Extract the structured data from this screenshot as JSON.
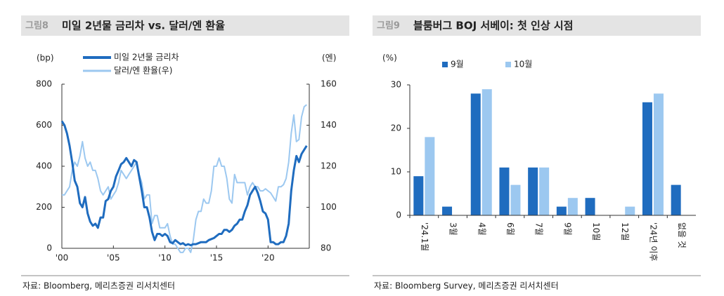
{
  "chart_data": [
    {
      "type": "line",
      "figure_label": "그림8",
      "title": "미일 2년물 금리차 vs. 달러/엔 환율",
      "source": "자료: Bloomberg, 메리츠증권 리서치센터",
      "y_label": "(bp)",
      "y2_label": "(엔)",
      "x": [
        2000,
        2000.25,
        2000.5,
        2000.75,
        2001,
        2001.25,
        2001.5,
        2001.75,
        2002,
        2002.25,
        2002.5,
        2002.75,
        2003,
        2003.25,
        2003.5,
        2003.75,
        2004,
        2004.25,
        2004.5,
        2004.75,
        2005,
        2005.25,
        2005.5,
        2005.75,
        2006,
        2006.25,
        2006.5,
        2006.75,
        2007,
        2007.25,
        2007.5,
        2007.75,
        2008,
        2008.25,
        2008.5,
        2008.75,
        2009,
        2009.25,
        2009.5,
        2009.75,
        2010,
        2010.25,
        2010.5,
        2010.75,
        2011,
        2011.25,
        2011.5,
        2011.75,
        2012,
        2012.25,
        2012.5,
        2012.75,
        2013,
        2013.25,
        2013.5,
        2013.75,
        2014,
        2014.25,
        2014.5,
        2014.75,
        2015,
        2015.25,
        2015.5,
        2015.75,
        2016,
        2016.25,
        2016.5,
        2016.75,
        2017,
        2017.25,
        2017.5,
        2017.75,
        2018,
        2018.25,
        2018.5,
        2018.75,
        2019,
        2019.25,
        2019.5,
        2019.75,
        2020,
        2020.25,
        2020.5,
        2020.75,
        2021,
        2021.25,
        2021.5,
        2021.75,
        2022,
        2022.25,
        2022.5,
        2022.75,
        2023,
        2023.25,
        2023.5,
        2023.75
      ],
      "series": [
        {
          "name": "미일 2년물 금리차",
          "color": "#1f6cbf",
          "width": 3,
          "values": [
            620,
            600,
            560,
            500,
            420,
            330,
            300,
            220,
            200,
            250,
            170,
            130,
            110,
            120,
            100,
            150,
            150,
            230,
            240,
            280,
            300,
            350,
            380,
            410,
            420,
            440,
            420,
            400,
            430,
            420,
            350,
            280,
            200,
            200,
            150,
            80,
            40,
            70,
            70,
            60,
            70,
            60,
            30,
            25,
            40,
            30,
            20,
            25,
            15,
            20,
            15,
            20,
            20,
            25,
            30,
            30,
            30,
            40,
            45,
            50,
            60,
            70,
            70,
            90,
            90,
            80,
            90,
            110,
            120,
            140,
            140,
            180,
            210,
            260,
            280,
            300,
            270,
            230,
            180,
            170,
            140,
            30,
            30,
            20,
            20,
            30,
            30,
            60,
            120,
            280,
            380,
            450,
            420,
            460,
            480,
            500
          ]
        },
        {
          "name": "달러/엔 환율(우)",
          "color": "#9cc8f0",
          "width": 2,
          "axis": "y2",
          "values": [
            106,
            106,
            108,
            110,
            118,
            122,
            120,
            125,
            132,
            124,
            120,
            122,
            118,
            118,
            114,
            108,
            106,
            108,
            110,
            104,
            106,
            108,
            112,
            118,
            116,
            114,
            116,
            118,
            120,
            122,
            116,
            112,
            104,
            106,
            106,
            92,
            96,
            96,
            90,
            90,
            90,
            92,
            86,
            82,
            82,
            80,
            78,
            78,
            80,
            80,
            78,
            84,
            94,
            98,
            98,
            104,
            102,
            102,
            108,
            120,
            120,
            124,
            120,
            120,
            114,
            104,
            102,
            116,
            112,
            112,
            112,
            112,
            106,
            110,
            112,
            110,
            110,
            108,
            108,
            109,
            108,
            107,
            105,
            103,
            110,
            110,
            111,
            114,
            122,
            136,
            145,
            132,
            133,
            144,
            149,
            150
          ]
        }
      ],
      "xlim": [
        2000,
        2024
      ],
      "xticks": [
        {
          "value": 2000,
          "label": "'00"
        },
        {
          "value": 2005,
          "label": "'05"
        },
        {
          "value": 2010,
          "label": "'10"
        },
        {
          "value": 2015,
          "label": "'15"
        },
        {
          "value": 2020,
          "label": "'20"
        }
      ],
      "ylim": [
        0,
        800
      ],
      "yticks": [
        0,
        200,
        400,
        600,
        800
      ],
      "y2lim": [
        80,
        160
      ],
      "y2ticks": [
        80,
        100,
        120,
        140,
        160
      ]
    },
    {
      "type": "bar",
      "figure_label": "그림9",
      "title": "블룸버그 BOJ 서베이: 첫 인상 시점",
      "source": "자료: Bloomberg Survey, 메리츠증권 리서치센터",
      "y_label": "(%)",
      "categories": [
        "'24.1월",
        "3월",
        "4월",
        "6월",
        "7월",
        "9월",
        "10월",
        "12월",
        "'24년 이후",
        "없을 것"
      ],
      "series": [
        {
          "name": "9월",
          "color": "#1f6cbf",
          "values": [
            9,
            2,
            28,
            11,
            11,
            2,
            4,
            null,
            26,
            7
          ]
        },
        {
          "name": "10월",
          "color": "#9cc8f0",
          "values": [
            18,
            null,
            29,
            7,
            11,
            4,
            null,
            2,
            28,
            null
          ]
        }
      ],
      "ylim": [
        0,
        30
      ],
      "yticks": [
        0,
        10,
        20,
        30
      ]
    }
  ]
}
